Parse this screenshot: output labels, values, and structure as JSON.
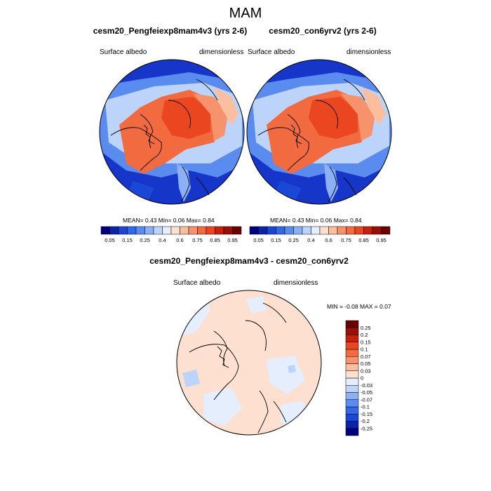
{
  "figure": {
    "title": "MAM"
  },
  "panels": [
    {
      "title": "cesm20_Pengfeiexp8mam4v3 (yrs 2-6)",
      "left_label": "Surface albedo",
      "right_label": "dimensionless",
      "stats": "MEAN=   0.43  Min=   0.06  Max=   0.84"
    },
    {
      "title": "cesm20_con6yrv2 (yrs 2-6)",
      "left_label": "Surface albedo",
      "right_label": "dimensionless",
      "stats": "MEAN=   0.43  Min=   0.06  Max=   0.84"
    }
  ],
  "diff_panel": {
    "title": "cesm20_Pengfeiexp8mam4v3 - cesm20_con6yrv2",
    "left_label": "Surface albedo",
    "right_label": "dimensionless",
    "stats": "MIN =  -0.08 MAX =    0.07"
  },
  "colorbar_abs": {
    "colors": [
      "#00007f",
      "#0a24a8",
      "#1a47d6",
      "#3068e8",
      "#5a8cf0",
      "#8cb0f5",
      "#bcd4fa",
      "#e4eefc",
      "#fde0cf",
      "#fbbe9e",
      "#f7936c",
      "#f26a3f",
      "#ea4720",
      "#c8200e",
      "#9a1006",
      "#6a0000"
    ],
    "labels": [
      "0.05",
      "0.15",
      "0.25",
      "0.4",
      "0.6",
      "0.75",
      "0.85",
      "0.95"
    ]
  },
  "colorbar_diff": {
    "colors": [
      "#00007f",
      "#0a24a8",
      "#1a47d6",
      "#3068e8",
      "#5a8cf0",
      "#8cb0f5",
      "#bcd4fa",
      "#e4eefc",
      "#fde0cf",
      "#fbbe9e",
      "#f7936c",
      "#f26a3f",
      "#ea4720",
      "#c8200e",
      "#9a1006",
      "#6a0000"
    ],
    "labels": [
      "-0.25",
      "-0.2",
      "-0.15",
      "-0.1",
      "-0.07",
      "-0.05",
      "-0.03",
      "0",
      "0.03",
      "0.05",
      "0.07",
      "0.1",
      "0.15",
      "0.2",
      "0.25"
    ]
  }
}
